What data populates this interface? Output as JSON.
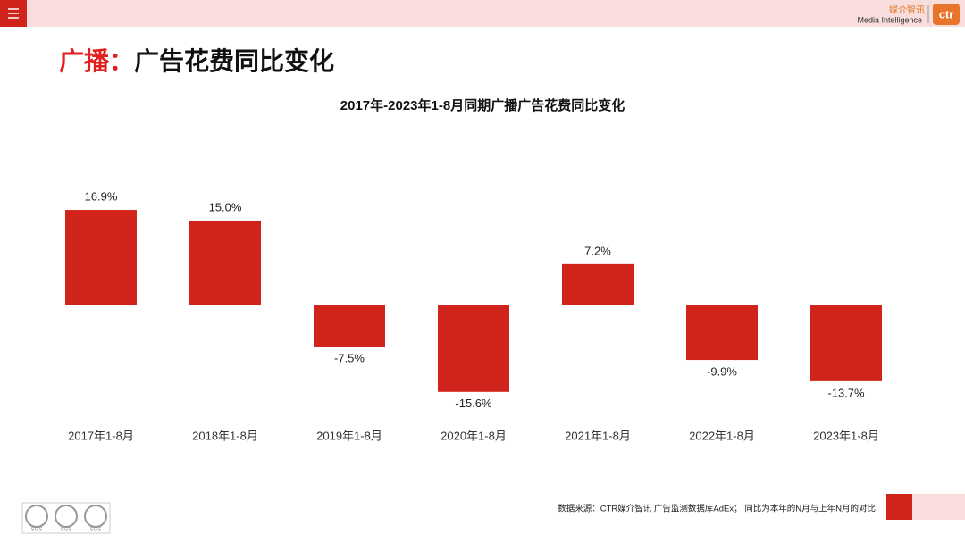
{
  "page": {
    "heading": {
      "highlight": "广播：",
      "text": "广告花费同比变化"
    },
    "logo": {
      "brand": "媒介智讯",
      "tagline": "Media Intelligence",
      "mark": "ctr"
    },
    "source": "数据来源：CTR媒介智讯 广告监测数据库AdEx；  同比为本年的N月与上年N月的对比",
    "badges": [
      "SGS",
      "SGS",
      "SGS"
    ]
  },
  "chart_data": {
    "type": "bar",
    "title": "2017年-2023年1-8月同期广播广告花费同比变化",
    "categories": [
      "2017年1-8月",
      "2018年1-8月",
      "2019年1-8月",
      "2020年1-8月",
      "2021年1-8月",
      "2022年1-8月",
      "2023年1-8月"
    ],
    "values": [
      16.9,
      15.0,
      -7.5,
      -15.6,
      7.2,
      -9.9,
      -13.7
    ],
    "value_labels": [
      "16.9%",
      "15.0%",
      "-7.5%",
      "-15.6%",
      "7.2%",
      "-9.9%",
      "-13.7%"
    ],
    "color": "#d0231c"
  }
}
